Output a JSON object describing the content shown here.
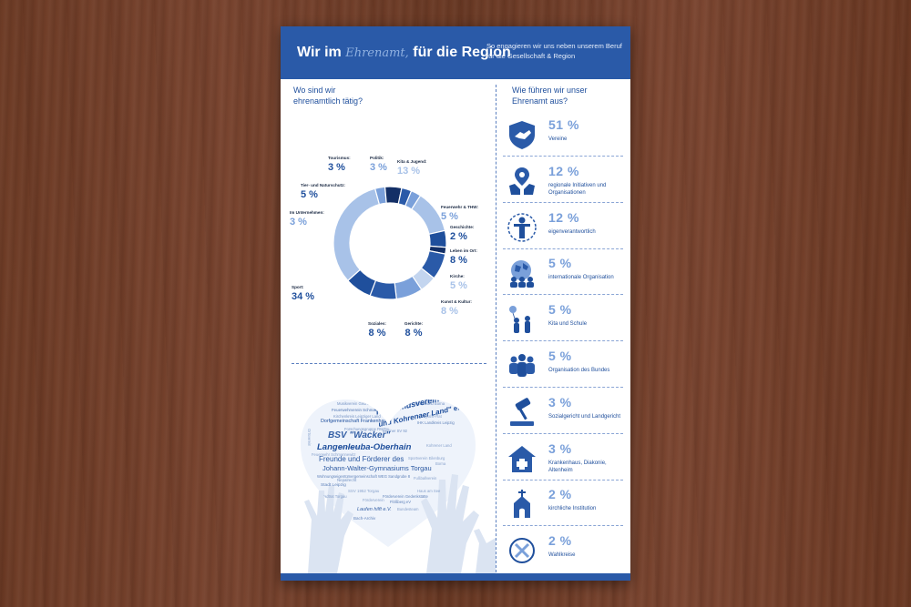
{
  "header": {
    "title_part1": "Wir im",
    "title_script": "Ehrenamt,",
    "title_part2": "für die Region",
    "subtitle": "So engagieren wir uns neben unserem Beruf für die Gesellschaft & Region"
  },
  "left_heading": "Wo sind wir ehrenamtlich tätig?",
  "right_heading": "Wie führen wir unser Ehrenamt aus?",
  "colors": {
    "header": "#2a5aa8",
    "dark": "#1f4f9c",
    "mid": "#4a7bc4",
    "light": "#a8c2e8"
  },
  "chart_data": {
    "type": "pie",
    "categories": [
      "Kita & Jugend",
      "Feuerwehr & THW",
      "Geschichte",
      "Leben im Ort",
      "Kirche",
      "Kunst & Kultur",
      "Gerichte",
      "Soziales",
      "Sport",
      "Im Unternehmen",
      "Tier- und Naturschutz",
      "Tourismus",
      "Politik"
    ],
    "values": [
      13,
      5,
      2,
      8,
      5,
      8,
      8,
      8,
      34,
      3,
      5,
      3,
      3
    ],
    "labels": [
      "13 %",
      "5 %",
      "2 %",
      "8 %",
      "5 %",
      "8 %",
      "8 %",
      "8 %",
      "34 %",
      "3 %",
      "5 %",
      "3 %",
      "3 %"
    ],
    "colors": [
      "#a8c2e8",
      "#1f4f9c",
      "#132f66",
      "#2a5aa8",
      "#c3d5ef",
      "#7aa0da",
      "#2a5aa8",
      "#1f4f9c",
      "#a8c2e8",
      "#7aa0da",
      "#132f66",
      "#2a5aa8",
      "#7aa0da"
    ],
    "label_colors": [
      "#a8c2e8",
      "#7aa0da",
      "#1f4f9c",
      "#1f4f9c",
      "#a8c2e8",
      "#a8c2e8",
      "#1f4f9c",
      "#1f4f9c",
      "#1f4f9c",
      "#7aa0da",
      "#1f4f9c",
      "#1f4f9c",
      "#7aa0da"
    ]
  },
  "modes": [
    {
      "pct": "51 %",
      "label": "Vereine",
      "icon": "shield-handshake-icon"
    },
    {
      "pct": "12 %",
      "label": "regionale Initiativen und Organisationen",
      "icon": "location-hands-icon"
    },
    {
      "pct": "12 %",
      "label": "eigenverantwortlich",
      "icon": "person-circle-icon"
    },
    {
      "pct": "5 %",
      "label": "internationale Organisation",
      "icon": "globe-people-icon"
    },
    {
      "pct": "5 %",
      "label": "Kita und Schule",
      "icon": "children-balloon-icon"
    },
    {
      "pct": "5 %",
      "label": "Organisation des Bundes",
      "icon": "group-icon"
    },
    {
      "pct": "3 %",
      "label": "Sozialgericht und Landgericht",
      "icon": "gavel-icon"
    },
    {
      "pct": "3 %",
      "label": "Krankenhaus, Diakonie, Altenheim",
      "icon": "hospital-icon"
    },
    {
      "pct": "2 %",
      "label": "kirchliche Institution",
      "icon": "church-icon"
    },
    {
      "pct": "2 %",
      "label": "Wahlkreise",
      "icon": "ballot-icon"
    }
  ],
  "word_cloud": [
    "Musikverein Gebhain e.V.",
    "THW Ortsverband Borna",
    "Feuerwehrverein Schmannewitz",
    "Tourismusverein \"Borna",
    "Dorfgemeinschaft Frankenhain",
    "und Kohrenaer Land\" e.V.",
    "BSV \"Wacker\"",
    "Langenleuba-Oberhain",
    "Freunde und Förderer des",
    "Johann-Walter-Gymnasiums Torgau",
    "Wohnungseigentümergemeinschaft WEG Sandgrube 8",
    "Stadt Leipzig",
    "Förderverein Gedenkstätte",
    "Flößberg eV",
    "Laufen hilft e.V.",
    "Bach-Archiv",
    "Fotografie-Rat",
    "IHK Landkreis Leipzig",
    "Kirchenkreis Leipziger Land",
    "Forschungsgruppe RWTH",
    "Berliner SV 92",
    "Ortsverein",
    "Nepalrecht",
    "SSV 1952 Torgau",
    "Feuerwehr Schmannewitz",
    "Borna",
    "Stadtrat Torgau",
    "Bundesteam",
    "Fußballverein",
    "Haus am See",
    "Kohrener Land",
    "BSV Wacker",
    "Sportverein Eilenburg",
    "Förderverein"
  ]
}
